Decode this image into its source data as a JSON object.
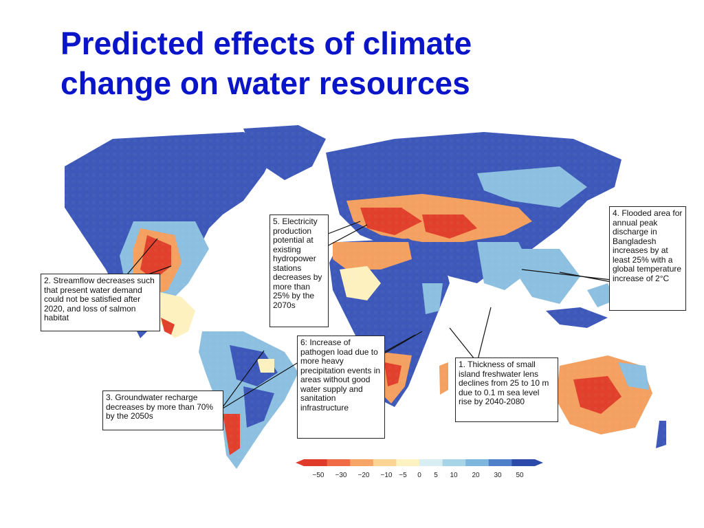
{
  "title": "Predicted effects of climate change on water resources",
  "title_lines": [
    "Predicted effects of climate",
    "change on water resources"
  ],
  "callouts": {
    "c1": "1. Thickness of small island freshwater lens declines from 25 to 10 m due to 0.1 m sea level rise by 2040-2080",
    "c2": "2. Streamflow decreases such that present water demand could not be satisfied after 2020, and loss of salmon habitat",
    "c3": "3. Groundwater recharge decreases by more than 70% by the 2050s",
    "c4": "4. Flooded area for annual peak discharge in Bangladesh increases by at least 25% with a global temperature increase of 2°C",
    "c5": "5. Electricity production potential at existing hydropower stations decreases by more than 25% by the 2070s",
    "c6": "6: Increase of pathogen load due to more heavy precipitation events in areas without good water supply and sanitation infrastructure"
  },
  "legend": {
    "ticks": [
      "−50",
      "−30",
      "−20",
      "−10",
      "−5",
      "0",
      "5",
      "10",
      "20",
      "30",
      "50"
    ],
    "colors": [
      "#e03a2a",
      "#f06a45",
      "#f7a566",
      "#fbd495",
      "#fdf2c2",
      "#d9eef2",
      "#a8d4e8",
      "#7fb6dd",
      "#4f7fc8",
      "#2c4aa8"
    ]
  },
  "colors": {
    "title": "#0a14c8",
    "ocean": "#ffffff",
    "wet": "#3d58b8",
    "moist": "#8cbfe0",
    "neutral": "#fdf1c0",
    "dry": "#f4a060",
    "very_dry": "#e0402c"
  }
}
